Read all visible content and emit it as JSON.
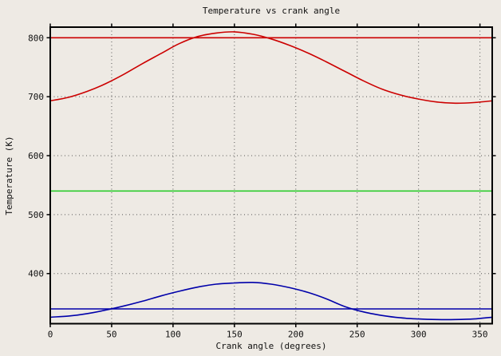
{
  "figure": {
    "title": "Temperature vs crank angle",
    "xlabel": "Crank angle (degrees)",
    "ylabel": "Temperature (K)",
    "background_color": "#eeeae4",
    "grid_color": "#555555",
    "border_color": "#000000",
    "text_color": "#111111"
  },
  "chart_data": {
    "type": "line",
    "title": "Temperature vs crank angle",
    "xlabel": "Crank angle (degrees)",
    "ylabel": "Temperature (K)",
    "xlim": [
      0,
      360
    ],
    "ylim": [
      315,
      818
    ],
    "xticks": [
      0,
      50,
      100,
      150,
      200,
      250,
      300,
      350
    ],
    "yticks": [
      400,
      500,
      600,
      700,
      800
    ],
    "grid": true,
    "legend": false,
    "series": [
      {
        "name": "red-curve",
        "color": "#cc0000",
        "width": 1.6,
        "x": [
          0,
          15,
          30,
          45,
          60,
          75,
          90,
          105,
          120,
          135,
          150,
          165,
          180,
          195,
          210,
          225,
          240,
          255,
          270,
          285,
          300,
          315,
          330,
          345,
          360
        ],
        "y": [
          693,
          699,
          709,
          722,
          738,
          756,
          773,
          790,
          802,
          808,
          810,
          806,
          798,
          787,
          774,
          759,
          743,
          727,
          713,
          703,
          696,
          691,
          689,
          690,
          693
        ]
      },
      {
        "name": "red-horizontal-line-800K",
        "color": "#cc0000",
        "width": 1.6,
        "x": [
          0,
          360
        ],
        "y": [
          800,
          800
        ]
      },
      {
        "name": "green-horizontal-line-540K",
        "color": "#2ecc2e",
        "width": 1.6,
        "x": [
          0,
          360
        ],
        "y": [
          540,
          540
        ]
      },
      {
        "name": "blue-curve",
        "color": "#0000aa",
        "width": 1.6,
        "x": [
          0,
          15,
          30,
          45,
          60,
          75,
          90,
          105,
          120,
          135,
          150,
          165,
          180,
          195,
          210,
          225,
          240,
          255,
          270,
          285,
          300,
          315,
          330,
          345,
          360
        ],
        "y": [
          326,
          328,
          332,
          338,
          345,
          353,
          362,
          370,
          377,
          382,
          384,
          385,
          382,
          376,
          368,
          357,
          344,
          335,
          329,
          325,
          323,
          322,
          322,
          323,
          326
        ]
      },
      {
        "name": "blue-horizontal-line-340K",
        "color": "#0000aa",
        "width": 1.6,
        "x": [
          0,
          360
        ],
        "y": [
          340,
          340
        ]
      }
    ]
  }
}
